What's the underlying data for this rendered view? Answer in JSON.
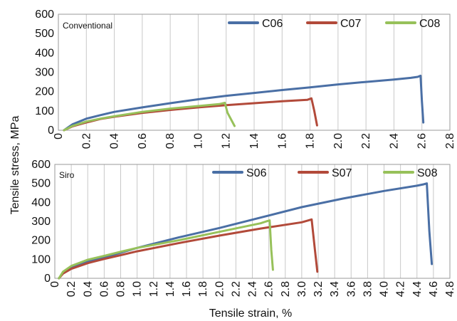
{
  "xlabel": "Tensile strain, %",
  "ylabel": "Tensile stress, MPa",
  "chart_data": [
    {
      "type": "line",
      "panel_label": "Conventional",
      "xlim": [
        0,
        2.8
      ],
      "ylim": [
        0,
        600
      ],
      "xticks": [
        "0",
        "0.2",
        "0.4",
        "0.6",
        "0.8",
        "1.0",
        "1.2",
        "1.4",
        "1.6",
        "1.8",
        "2.0",
        "2.2",
        "2.4",
        "2.6",
        "2.8"
      ],
      "yticks": [
        "0",
        "100",
        "200",
        "300",
        "400",
        "500",
        "600"
      ],
      "grid": "vertical",
      "legend_position": "top",
      "series": [
        {
          "name": "C06",
          "color": "#4a6fa5",
          "x": [
            0.04,
            0.1,
            0.2,
            0.3,
            0.4,
            0.6,
            0.8,
            1.0,
            1.2,
            1.4,
            1.6,
            1.8,
            2.0,
            2.2,
            2.4,
            2.52,
            2.57,
            2.59,
            2.6,
            2.61
          ],
          "y": [
            0,
            30,
            60,
            78,
            95,
            118,
            140,
            160,
            178,
            193,
            208,
            222,
            237,
            250,
            262,
            271,
            276,
            282,
            150,
            40
          ]
        },
        {
          "name": "C07",
          "color": "#b24a3a",
          "x": [
            0.04,
            0.1,
            0.2,
            0.3,
            0.4,
            0.6,
            0.8,
            1.0,
            1.2,
            1.4,
            1.6,
            1.78,
            1.81,
            1.83,
            1.85
          ],
          "y": [
            0,
            20,
            40,
            58,
            70,
            90,
            105,
            118,
            130,
            140,
            150,
            157,
            165,
            100,
            25
          ]
        },
        {
          "name": "C08",
          "color": "#97c15a",
          "x": [
            0.04,
            0.1,
            0.2,
            0.3,
            0.4,
            0.6,
            0.8,
            1.0,
            1.15,
            1.19,
            1.21,
            1.26
          ],
          "y": [
            0,
            22,
            45,
            60,
            72,
            95,
            112,
            125,
            135,
            142,
            90,
            22
          ]
        }
      ]
    },
    {
      "type": "line",
      "panel_label": "Siro",
      "xlim": [
        0,
        4.8
      ],
      "ylim": [
        0,
        600
      ],
      "xticks": [
        "0",
        "0.2",
        "0.4",
        "0.6",
        "0.8",
        "1.0",
        "1.2",
        "1.4",
        "1.6",
        "1.8",
        "2.0",
        "2.2",
        "2.4",
        "2.6",
        "2.8",
        "3.0",
        "3.2",
        "3.4",
        "3.6",
        "3.8",
        "4.0",
        "4.2",
        "4.4",
        "4.6",
        "4.8"
      ],
      "yticks": [
        "0",
        "100",
        "200",
        "300",
        "400",
        "500",
        "600"
      ],
      "grid": "vertical",
      "legend_position": "top",
      "series": [
        {
          "name": "S06",
          "color": "#4a6fa5",
          "x": [
            0.05,
            0.1,
            0.2,
            0.4,
            0.6,
            0.8,
            1.0,
            1.5,
            2.0,
            2.5,
            3.0,
            3.5,
            4.0,
            4.4,
            4.48,
            4.52,
            4.55,
            4.58
          ],
          "y": [
            0,
            30,
            60,
            90,
            110,
            135,
            160,
            215,
            265,
            320,
            375,
            420,
            460,
            488,
            495,
            500,
            250,
            75
          ]
        },
        {
          "name": "S07",
          "color": "#b24a3a",
          "x": [
            0.05,
            0.1,
            0.2,
            0.4,
            0.6,
            0.8,
            1.0,
            1.5,
            2.0,
            2.5,
            3.0,
            3.08,
            3.12,
            3.16,
            3.19
          ],
          "y": [
            0,
            25,
            50,
            80,
            102,
            122,
            142,
            185,
            225,
            262,
            295,
            305,
            310,
            150,
            35
          ]
        },
        {
          "name": "S08",
          "color": "#97c15a",
          "x": [
            0.05,
            0.1,
            0.2,
            0.4,
            0.6,
            0.8,
            1.0,
            1.5,
            2.0,
            2.5,
            2.57,
            2.61,
            2.63,
            2.65
          ],
          "y": [
            0,
            35,
            65,
            98,
            118,
            140,
            160,
            200,
            245,
            290,
            300,
            305,
            150,
            45
          ]
        }
      ]
    }
  ]
}
